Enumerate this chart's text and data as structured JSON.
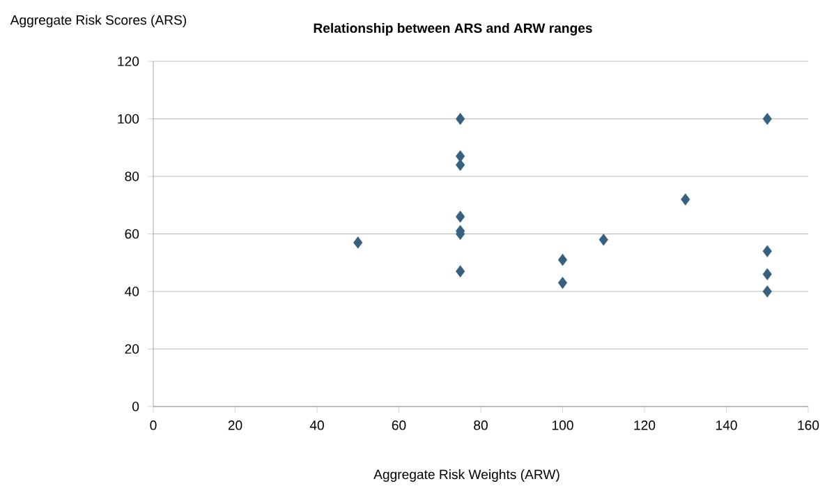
{
  "chart_data": {
    "type": "scatter",
    "title": "Relationship between ARS and ARW ranges",
    "xlabel": "Aggregate Risk Weights (ARW)",
    "ylabel": "Aggregate Risk Scores (ARS)",
    "x": [
      50,
      75,
      75,
      75,
      75,
      75,
      75,
      75,
      100,
      100,
      110,
      130,
      150,
      150,
      150,
      150
    ],
    "values": [
      57,
      100,
      87,
      84,
      66,
      61,
      60,
      47,
      51,
      43,
      58,
      72,
      100,
      54,
      46,
      40
    ],
    "color": "#36607f",
    "marker": "diamond",
    "grid": "y",
    "xlim": [
      0,
      160
    ],
    "xticks": [
      0,
      20,
      40,
      60,
      80,
      100,
      120,
      140,
      160
    ],
    "ylim": [
      0,
      120
    ],
    "yticks": [
      0,
      20,
      40,
      60,
      80,
      100,
      120
    ]
  }
}
